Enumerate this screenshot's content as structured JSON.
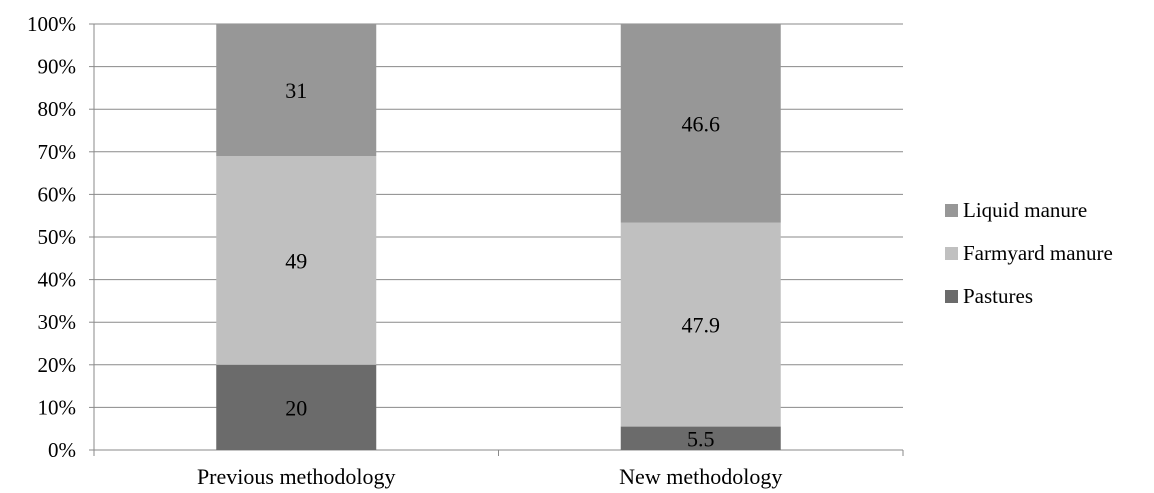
{
  "chart_data": {
    "type": "bar",
    "stacked": true,
    "percent_stacked": true,
    "categories": [
      "Previous methodology",
      "New methodology"
    ],
    "series": [
      {
        "name": "Pastures",
        "values": [
          20,
          5.5
        ],
        "color": "#6b6b6b"
      },
      {
        "name": "Farmyard manure",
        "values": [
          49,
          47.9
        ],
        "color": "#c0c0c0"
      },
      {
        "name": "Liquid manure",
        "values": [
          31,
          46.6
        ],
        "color": "#979797"
      }
    ],
    "ylim": [
      0,
      100
    ],
    "yticks": [
      "0%",
      "10%",
      "20%",
      "30%",
      "40%",
      "50%",
      "60%",
      "70%",
      "80%",
      "90%",
      "100%"
    ],
    "grid": true,
    "legend": {
      "position": "right",
      "order": [
        "Liquid manure",
        "Farmyard manure",
        "Pastures"
      ]
    },
    "title": "",
    "xlabel": "",
    "ylabel": ""
  }
}
